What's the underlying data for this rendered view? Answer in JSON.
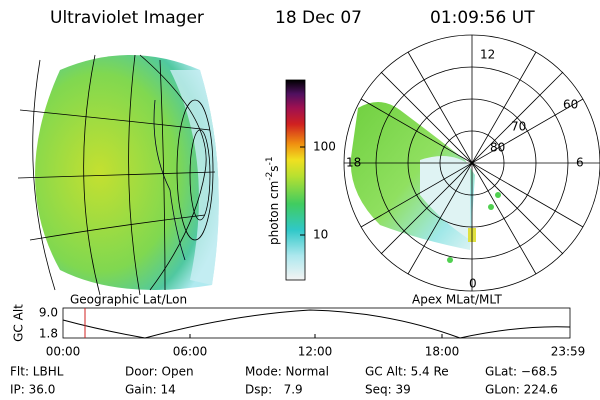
{
  "header": {
    "title": "Ultraviolet Imager",
    "date": "18 Dec 07",
    "time": "01:09:56 UT"
  },
  "left_panel": {
    "label": "Geographic Lat/Lon"
  },
  "right_panel": {
    "label": "Apex MLat/MLT",
    "mlt_labels": [
      "12",
      "18",
      "6",
      "0"
    ],
    "mlat_labels": [
      "60",
      "70",
      "80"
    ]
  },
  "colorbar": {
    "label": "photon cm",
    "exp1": "-2",
    "unit2": "s",
    "exp2": "-1",
    "ticks": [
      "100",
      "10"
    ]
  },
  "altitude_plot": {
    "label": "GC Alt",
    "yticks": [
      "9.0",
      "1.8"
    ],
    "xticks": [
      "00:00",
      "06:00",
      "12:00",
      "18:00",
      "23:59"
    ]
  },
  "footer": {
    "rows": [
      [
        "Flt: LBHL",
        "Door: Open",
        "Mode: Normal",
        "GC Alt: 5.4 Re",
        "GLat: −68.5"
      ],
      [
        "IP: 36.0",
        "Gain: 14",
        "Dsp:   7.9",
        "Seq: 39",
        "GLon: 224.6"
      ]
    ]
  }
}
